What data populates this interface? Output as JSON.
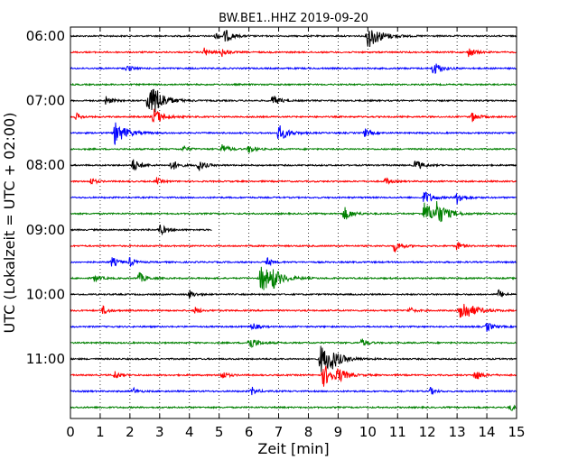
{
  "chart_data": {
    "type": "line",
    "title": "BW.BE1..HHZ 2019-09-20",
    "xlabel": "Zeit  [min]",
    "ylabel": "UTC (Lokalzeit = UTC + 02:00)",
    "xlim": [
      0,
      15
    ],
    "x_ticks": [
      "0",
      "1",
      "2",
      "3",
      "4",
      "5",
      "6",
      "7",
      "8",
      "9",
      "10",
      "11",
      "12",
      "13",
      "14",
      "15"
    ],
    "y_tick_labels": [
      "06:00",
      "07:00",
      "08:00",
      "09:00",
      "10:00",
      "11:00"
    ],
    "grid": "vertical dotted",
    "trace_colors": [
      "#000000",
      "#ff0000",
      "#0000ff",
      "#008000"
    ],
    "traces": [
      {
        "start": "06:00",
        "duration_min": 15,
        "events": [
          {
            "t": 4.9,
            "a": 0.25
          },
          {
            "t": 5.2,
            "a": 0.45
          },
          {
            "t": 10.0,
            "a": 0.9
          }
        ]
      },
      {
        "start": "06:15",
        "duration_min": 15,
        "events": [
          {
            "t": 4.5,
            "a": 0.3
          },
          {
            "t": 5.1,
            "a": 0.3
          },
          {
            "t": 13.4,
            "a": 0.35
          }
        ]
      },
      {
        "start": "06:30",
        "duration_min": 15,
        "events": [
          {
            "t": 1.9,
            "a": 0.25
          },
          {
            "t": 12.2,
            "a": 0.5
          }
        ]
      },
      {
        "start": "06:45",
        "duration_min": 15,
        "events": []
      },
      {
        "start": "07:00",
        "duration_min": 15,
        "events": [
          {
            "t": 1.2,
            "a": 0.3
          },
          {
            "t": 2.6,
            "a": 0.9
          },
          {
            "t": 2.8,
            "a": 0.6
          },
          {
            "t": 6.8,
            "a": 0.4
          }
        ]
      },
      {
        "start": "07:15",
        "duration_min": 15,
        "events": [
          {
            "t": 0.2,
            "a": 0.25
          },
          {
            "t": 2.8,
            "a": 0.6
          },
          {
            "t": 13.5,
            "a": 0.35
          }
        ]
      },
      {
        "start": "07:30",
        "duration_min": 15,
        "events": [
          {
            "t": 1.5,
            "a": 0.8
          },
          {
            "t": 7.0,
            "a": 0.6
          },
          {
            "t": 9.9,
            "a": 0.3
          }
        ]
      },
      {
        "start": "07:45",
        "duration_min": 15,
        "events": [
          {
            "t": 3.8,
            "a": 0.25
          },
          {
            "t": 5.1,
            "a": 0.35
          },
          {
            "t": 6.0,
            "a": 0.3
          }
        ]
      },
      {
        "start": "08:00",
        "duration_min": 15,
        "events": [
          {
            "t": 2.1,
            "a": 0.45
          },
          {
            "t": 3.4,
            "a": 0.4
          },
          {
            "t": 4.3,
            "a": 0.4
          },
          {
            "t": 11.6,
            "a": 0.4
          }
        ]
      },
      {
        "start": "08:15",
        "duration_min": 15,
        "events": [
          {
            "t": 0.7,
            "a": 0.25
          },
          {
            "t": 2.9,
            "a": 0.25
          },
          {
            "t": 10.6,
            "a": 0.25
          }
        ]
      },
      {
        "start": "08:30",
        "duration_min": 15,
        "events": [
          {
            "t": 11.9,
            "a": 0.5
          },
          {
            "t": 13.0,
            "a": 0.45
          }
        ]
      },
      {
        "start": "08:45",
        "duration_min": 15,
        "events": [
          {
            "t": 9.2,
            "a": 0.5
          },
          {
            "t": 11.9,
            "a": 0.8
          },
          {
            "t": 12.3,
            "a": 0.7
          }
        ]
      },
      {
        "start": "09:00",
        "duration_min": 4.75,
        "events": [
          {
            "t": 3.0,
            "a": 0.4
          }
        ]
      },
      {
        "start": "09:15",
        "duration_min": 15,
        "events": [
          {
            "t": 10.9,
            "a": 0.4
          },
          {
            "t": 13.0,
            "a": 0.3
          }
        ]
      },
      {
        "start": "09:30",
        "duration_min": 15,
        "events": [
          {
            "t": 1.4,
            "a": 0.35
          },
          {
            "t": 2.0,
            "a": 0.3
          },
          {
            "t": 6.6,
            "a": 0.3
          }
        ]
      },
      {
        "start": "09:45",
        "duration_min": 15,
        "events": [
          {
            "t": 0.8,
            "a": 0.3
          },
          {
            "t": 2.3,
            "a": 0.4
          },
          {
            "t": 6.4,
            "a": 1.0
          },
          {
            "t": 6.8,
            "a": 0.45
          }
        ]
      },
      {
        "start": "10:00",
        "duration_min": 15,
        "events": [
          {
            "t": 4.0,
            "a": 0.3
          },
          {
            "t": 14.4,
            "a": 0.3
          }
        ]
      },
      {
        "start": "10:15",
        "duration_min": 15,
        "events": [
          {
            "t": 1.1,
            "a": 0.3
          },
          {
            "t": 4.2,
            "a": 0.25
          },
          {
            "t": 11.4,
            "a": 0.25
          },
          {
            "t": 13.1,
            "a": 0.9
          }
        ]
      },
      {
        "start": "10:30",
        "duration_min": 15,
        "events": [
          {
            "t": 6.1,
            "a": 0.3
          },
          {
            "t": 14.0,
            "a": 0.35
          }
        ]
      },
      {
        "start": "10:45",
        "duration_min": 15,
        "events": [
          {
            "t": 6.0,
            "a": 0.5
          },
          {
            "t": 9.8,
            "a": 0.3
          }
        ]
      },
      {
        "start": "11:00",
        "duration_min": 15,
        "events": [
          {
            "t": 8.4,
            "a": 1.0
          },
          {
            "t": 8.7,
            "a": 0.5
          }
        ]
      },
      {
        "start": "11:15",
        "duration_min": 15,
        "events": [
          {
            "t": 1.5,
            "a": 0.3
          },
          {
            "t": 5.1,
            "a": 0.3
          },
          {
            "t": 8.5,
            "a": 0.8
          },
          {
            "t": 9.0,
            "a": 0.4
          },
          {
            "t": 13.6,
            "a": 0.4
          }
        ]
      },
      {
        "start": "11:30",
        "duration_min": 15,
        "events": [
          {
            "t": 2.1,
            "a": 0.25
          },
          {
            "t": 6.1,
            "a": 0.3
          },
          {
            "t": 12.1,
            "a": 0.25
          }
        ]
      },
      {
        "start": "11:45",
        "duration_min": 15,
        "events": [
          {
            "t": 14.8,
            "a": 0.25
          }
        ]
      }
    ]
  }
}
